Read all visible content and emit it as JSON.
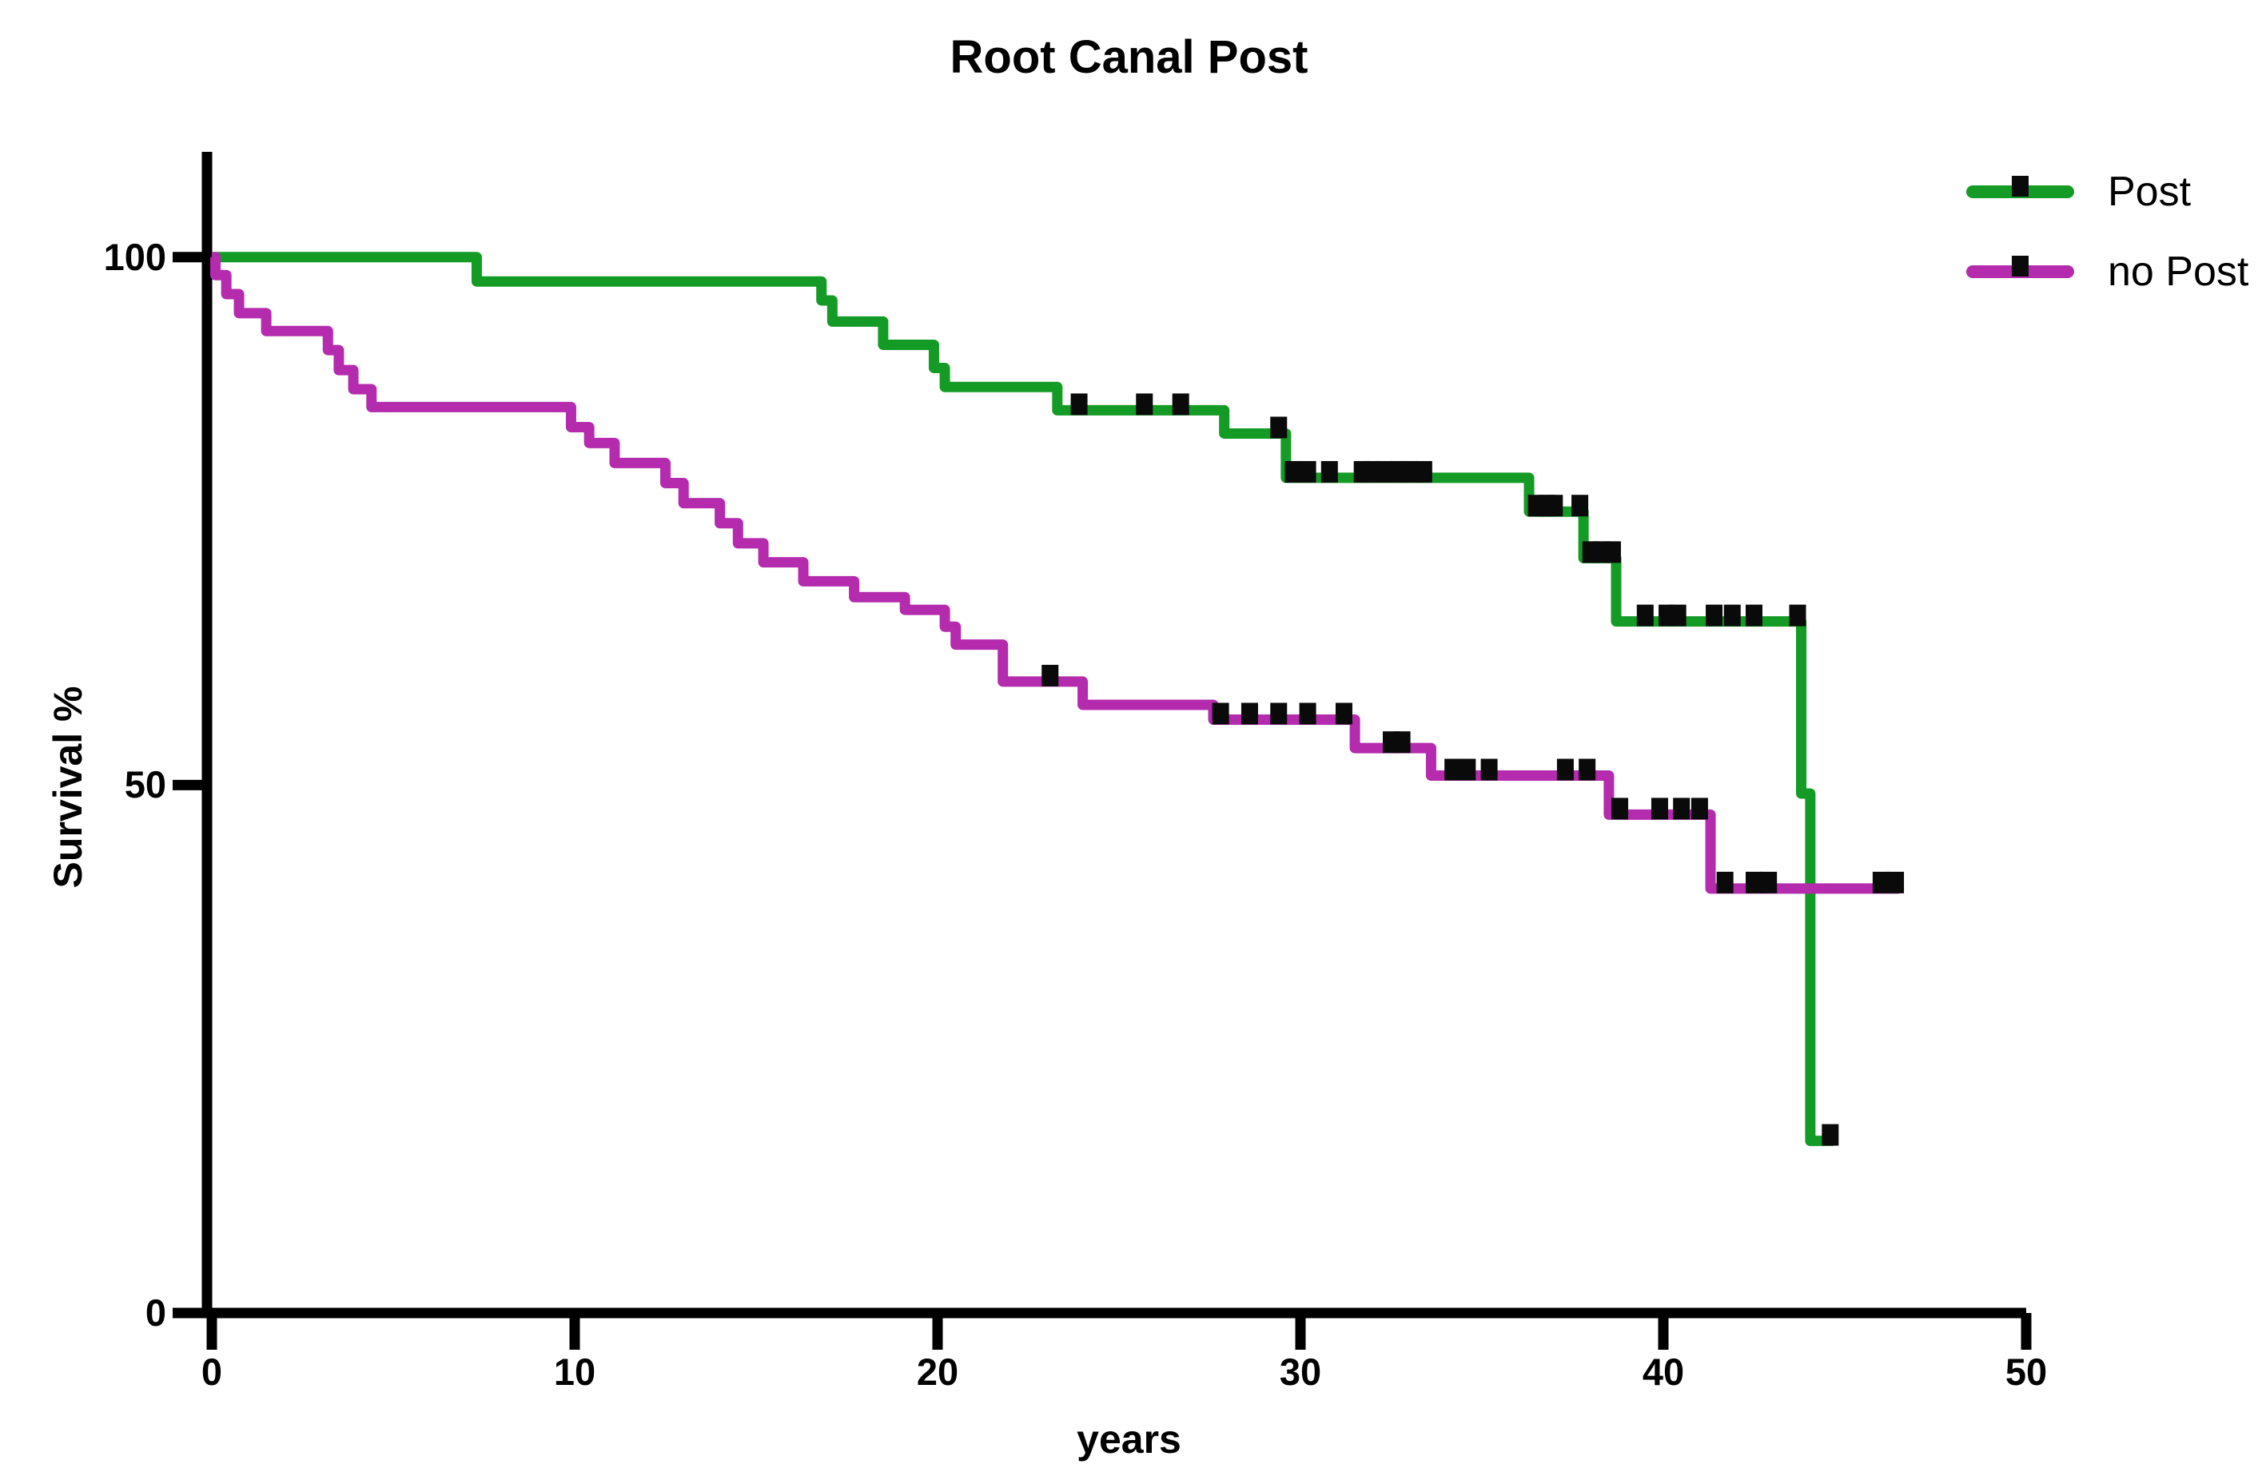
{
  "chart_data": {
    "type": "line",
    "subtype": "kaplan-meier-step-survival",
    "title": "Root Canal Post",
    "xlabel": "years",
    "ylabel": "Survival %",
    "xlim": [
      0,
      50
    ],
    "ylim": [
      0,
      100
    ],
    "xticks": [
      0,
      10,
      20,
      30,
      40,
      50
    ],
    "yticks": [
      100,
      50,
      0
    ],
    "grid": false,
    "legend_position": "top-right",
    "axis_color": "#000000",
    "censor_color": "#0a0a0a",
    "series": [
      {
        "name": "Post",
        "color": "#149b26",
        "steps": [
          [
            0,
            100
          ],
          [
            7.3,
            97.7
          ],
          [
            16.8,
            95.9
          ],
          [
            17.1,
            93.9
          ],
          [
            18.5,
            91.7
          ],
          [
            19.9,
            89.5
          ],
          [
            20.2,
            87.7
          ],
          [
            23.3,
            85.5
          ],
          [
            27.9,
            83.3
          ],
          [
            29.6,
            79.1
          ],
          [
            36.3,
            75.9
          ],
          [
            37.8,
            71.5
          ],
          [
            38.7,
            65.5
          ],
          [
            43.8,
            49.2
          ],
          [
            44.05,
            16.3
          ]
        ],
        "end_x": 44.7,
        "censors": [
          [
            23.9,
            85.5
          ],
          [
            25.7,
            85.5
          ],
          [
            26.7,
            85.5
          ],
          [
            29.4,
            83.3
          ],
          [
            29.8,
            79.1
          ],
          [
            30.2,
            79.1
          ],
          [
            30.8,
            79.1
          ],
          [
            31.7,
            79.1
          ],
          [
            32.0,
            79.1
          ],
          [
            32.3,
            79.1
          ],
          [
            32.7,
            79.1
          ],
          [
            33.0,
            79.1
          ],
          [
            33.4,
            79.1
          ],
          [
            36.5,
            75.9
          ],
          [
            36.8,
            75.9
          ],
          [
            37.0,
            75.9
          ],
          [
            37.7,
            75.9
          ],
          [
            38.0,
            71.5
          ],
          [
            38.3,
            71.5
          ],
          [
            38.6,
            71.5
          ],
          [
            39.5,
            65.5
          ],
          [
            40.1,
            65.5
          ],
          [
            40.4,
            65.5
          ],
          [
            41.4,
            65.5
          ],
          [
            41.9,
            65.5
          ],
          [
            42.5,
            65.5
          ],
          [
            43.7,
            65.5
          ],
          [
            44.6,
            16.3
          ]
        ]
      },
      {
        "name": "no Post",
        "color": "#b42bad",
        "steps": [
          [
            0,
            100
          ],
          [
            0.1,
            98.3
          ],
          [
            0.4,
            96.5
          ],
          [
            0.75,
            94.7
          ],
          [
            1.5,
            93.0
          ],
          [
            3.2,
            91.2
          ],
          [
            3.5,
            89.3
          ],
          [
            3.9,
            87.5
          ],
          [
            4.4,
            85.8
          ],
          [
            9.9,
            83.9
          ],
          [
            10.4,
            82.4
          ],
          [
            11.1,
            80.5
          ],
          [
            12.5,
            78.6
          ],
          [
            13.0,
            76.7
          ],
          [
            14.0,
            74.8
          ],
          [
            14.5,
            72.9
          ],
          [
            15.2,
            71.1
          ],
          [
            16.3,
            69.3
          ],
          [
            17.7,
            67.8
          ],
          [
            19.1,
            66.6
          ],
          [
            20.2,
            65.0
          ],
          [
            20.5,
            63.3
          ],
          [
            21.8,
            59.8
          ],
          [
            24.0,
            57.6
          ],
          [
            27.6,
            56.2
          ],
          [
            31.5,
            53.5
          ],
          [
            33.6,
            50.9
          ],
          [
            38.5,
            47.2
          ],
          [
            41.3,
            40.2
          ]
        ],
        "end_x": 46.5,
        "censors": [
          [
            23.1,
            59.8
          ],
          [
            27.8,
            56.2
          ],
          [
            28.6,
            56.2
          ],
          [
            29.4,
            56.2
          ],
          [
            30.2,
            56.2
          ],
          [
            31.2,
            56.2
          ],
          [
            32.5,
            53.5
          ],
          [
            32.8,
            53.5
          ],
          [
            34.2,
            50.9
          ],
          [
            34.6,
            50.9
          ],
          [
            35.2,
            50.9
          ],
          [
            37.3,
            50.9
          ],
          [
            37.9,
            50.9
          ],
          [
            38.8,
            47.2
          ],
          [
            39.9,
            47.2
          ],
          [
            40.5,
            47.2
          ],
          [
            41.0,
            47.2
          ],
          [
            41.7,
            40.2
          ],
          [
            42.5,
            40.2
          ],
          [
            42.9,
            40.2
          ],
          [
            46.0,
            40.2
          ],
          [
            46.4,
            40.2
          ]
        ]
      }
    ]
  }
}
